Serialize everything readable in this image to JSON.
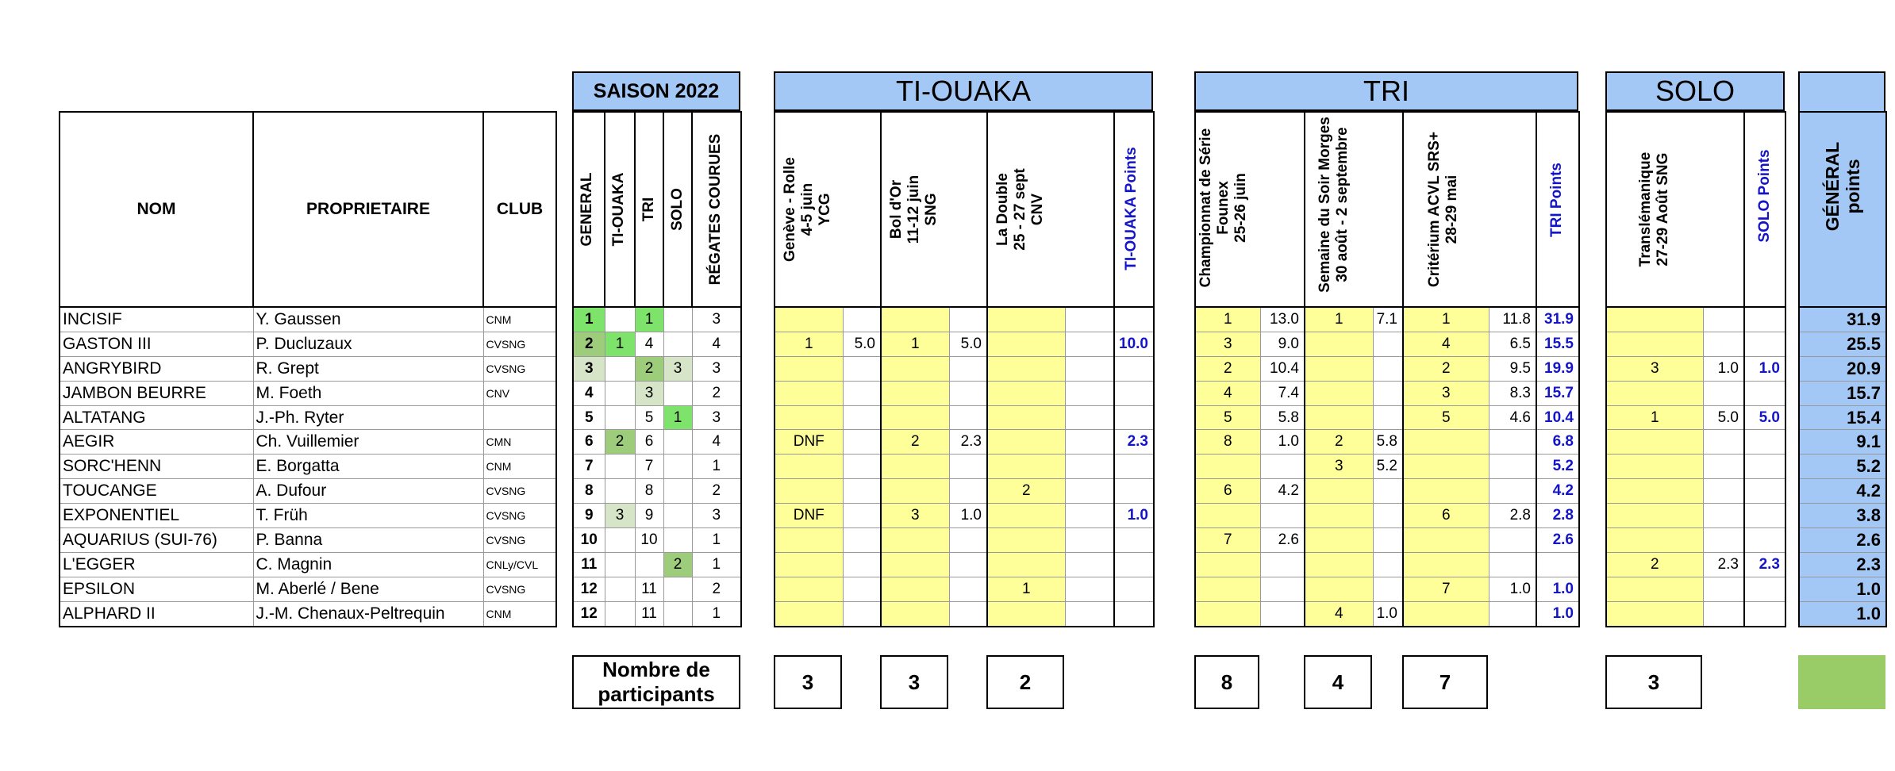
{
  "headers": {
    "nom": "NOM",
    "proprietaire": "PROPRIETAIRE",
    "club": "CLUB",
    "saison": "SAISON 2022",
    "tiouaka": "TI-OUAKA",
    "tri": "TRI",
    "solo": "SOLO",
    "season_cols": [
      "GENERAL",
      "TI-OUAKA",
      "TRI",
      "SOLO",
      "RÉGATES COURUES"
    ],
    "tiouaka_events": [
      [
        "Genève - Rolle",
        "4-5 juin",
        "YCG"
      ],
      [
        "Bol d'Or",
        "11-12 juin",
        "SNG"
      ],
      [
        "La Double",
        "25 - 27 sept",
        "CNV"
      ]
    ],
    "tiouaka_points": "TI-OUAKA Points",
    "tri_events": [
      [
        "Championnat de Série",
        "Founex",
        "25-26 juin"
      ],
      [
        "Semaine du Soir Morges",
        "30 août - 2 septembre"
      ],
      [
        "Critérium ACVL SRS+",
        "28-29 mai"
      ]
    ],
    "tri_points": "TRI Points",
    "solo_events": [
      [
        "Translémanique",
        "27-29 Août SNG"
      ]
    ],
    "solo_points": "SOLO Points",
    "general_points": [
      "GÉNÉRAL",
      "points"
    ]
  },
  "rows": [
    {
      "nom": "INCISIF",
      "prop": "Y. Gaussen",
      "club": "CNM",
      "gen": "1",
      "ti": "",
      "tri": "1",
      "solo": "",
      "reg": "3",
      "e1": "",
      "p1": "",
      "e2": "",
      "p2": "",
      "e3": "",
      "tip": "",
      "t1": "1",
      "q1": "13.0",
      "t2": "1",
      "q2": "7.1",
      "t3": "1",
      "q3": "11.8",
      "trip": "31.9",
      "s1": "",
      "sp": "",
      "ss": "",
      "gp": "31.9"
    },
    {
      "nom": "GASTON III",
      "prop": "P. Ducluzaux",
      "club": "CVSNG",
      "gen": "2",
      "ti": "1",
      "tri": "4",
      "solo": "",
      "reg": "4",
      "e1": "1",
      "p1": "5.0",
      "e2": "1",
      "p2": "5.0",
      "e3": "",
      "tip": "10.0",
      "t1": "3",
      "q1": "9.0",
      "t2": "",
      "q2": "",
      "t3": "4",
      "q3": "6.5",
      "trip": "15.5",
      "s1": "",
      "sp": "",
      "ss": "",
      "gp": "25.5"
    },
    {
      "nom": "ANGRYBIRD",
      "prop": "R. Grept",
      "club": "CVSNG",
      "gen": "3",
      "ti": "",
      "tri": "2",
      "solo": "3",
      "reg": "3",
      "e1": "",
      "p1": "",
      "e2": "",
      "p2": "",
      "e3": "",
      "tip": "",
      "t1": "2",
      "q1": "10.4",
      "t2": "",
      "q2": "",
      "t3": "2",
      "q3": "9.5",
      "trip": "19.9",
      "s1": "3",
      "sp": "1.0",
      "ss": "1.0",
      "gp": "20.9"
    },
    {
      "nom": "JAMBON BEURRE",
      "prop": "M. Foeth",
      "club": "CNV",
      "gen": "4",
      "ti": "",
      "tri": "3",
      "solo": "",
      "reg": "2",
      "e1": "",
      "p1": "",
      "e2": "",
      "p2": "",
      "e3": "",
      "tip": "",
      "t1": "4",
      "q1": "7.4",
      "t2": "",
      "q2": "",
      "t3": "3",
      "q3": "8.3",
      "trip": "15.7",
      "s1": "",
      "sp": "",
      "ss": "",
      "gp": "15.7"
    },
    {
      "nom": "ALTATANG",
      "prop": "J.-Ph. Ryter",
      "club": "",
      "gen": "5",
      "ti": "",
      "tri": "5",
      "solo": "1",
      "reg": "3",
      "e1": "",
      "p1": "",
      "e2": "",
      "p2": "",
      "e3": "",
      "tip": "",
      "t1": "5",
      "q1": "5.8",
      "t2": "",
      "q2": "",
      "t3": "5",
      "q3": "4.6",
      "trip": "10.4",
      "s1": "1",
      "sp": "5.0",
      "ss": "5.0",
      "gp": "15.4"
    },
    {
      "nom": "AEGIR",
      "prop": "Ch. Vuillemier",
      "club": "CMN",
      "gen": "6",
      "ti": "2",
      "tri": "6",
      "solo": "",
      "reg": "4",
      "e1": "DNF",
      "p1": "",
      "e2": "2",
      "p2": "2.3",
      "e3": "",
      "tip": "2.3",
      "t1": "8",
      "q1": "1.0",
      "t2": "2",
      "q2": "5.8",
      "t3": "",
      "q3": "",
      "trip": "6.8",
      "s1": "",
      "sp": "",
      "ss": "",
      "gp": "9.1"
    },
    {
      "nom": "SORC'HENN",
      "prop": "E. Borgatta",
      "club": "CNM",
      "gen": "7",
      "ti": "",
      "tri": "7",
      "solo": "",
      "reg": "1",
      "e1": "",
      "p1": "",
      "e2": "",
      "p2": "",
      "e3": "",
      "tip": "",
      "t1": "",
      "q1": "",
      "t2": "3",
      "q2": "5.2",
      "t3": "",
      "q3": "",
      "trip": "5.2",
      "s1": "",
      "sp": "",
      "ss": "",
      "gp": "5.2"
    },
    {
      "nom": "TOUCANGE",
      "prop": "A. Dufour",
      "club": "CVSNG",
      "gen": "8",
      "ti": "",
      "tri": "8",
      "solo": "",
      "reg": "2",
      "e1": "",
      "p1": "",
      "e2": "",
      "p2": "",
      "e3": "2",
      "tip": "",
      "t1": "6",
      "q1": "4.2",
      "t2": "",
      "q2": "",
      "t3": "",
      "q3": "",
      "trip": "4.2",
      "s1": "",
      "sp": "",
      "ss": "",
      "gp": "4.2"
    },
    {
      "nom": "EXPONENTIEL",
      "prop": "T. Früh",
      "club": "CVSNG",
      "gen": "9",
      "ti": "3",
      "tri": "9",
      "solo": "",
      "reg": "3",
      "e1": "DNF",
      "p1": "",
      "e2": "3",
      "p2": "1.0",
      "e3": "",
      "tip": "1.0",
      "t1": "",
      "q1": "",
      "t2": "",
      "q2": "",
      "t3": "6",
      "q3": "2.8",
      "trip": "2.8",
      "s1": "",
      "sp": "",
      "ss": "",
      "gp": "3.8"
    },
    {
      "nom": "AQUARIUS (SUI-76)",
      "prop": "P. Banna",
      "club": "CVSNG",
      "gen": "10",
      "ti": "",
      "tri": "10",
      "solo": "",
      "reg": "1",
      "e1": "",
      "p1": "",
      "e2": "",
      "p2": "",
      "e3": "",
      "tip": "",
      "t1": "7",
      "q1": "2.6",
      "t2": "",
      "q2": "",
      "t3": "",
      "q3": "",
      "trip": "2.6",
      "s1": "",
      "sp": "",
      "ss": "",
      "gp": "2.6"
    },
    {
      "nom": "L'EGGER",
      "prop": "C. Magnin",
      "club": "CNLy/CVL",
      "gen": "11",
      "ti": "",
      "tri": "",
      "solo": "2",
      "reg": "1",
      "e1": "",
      "p1": "",
      "e2": "",
      "p2": "",
      "e3": "",
      "tip": "",
      "t1": "",
      "q1": "",
      "t2": "",
      "q2": "",
      "t3": "",
      "q3": "",
      "trip": "",
      "s1": "2",
      "sp": "2.3",
      "ss": "2.3",
      "gp": "2.3"
    },
    {
      "nom": "EPSILON",
      "prop": "M. Aberlé / Bene",
      "club": "CVSNG",
      "gen": "12",
      "ti": "",
      "tri": "11",
      "solo": "",
      "reg": "2",
      "e1": "",
      "p1": "",
      "e2": "",
      "p2": "",
      "e3": "1",
      "tip": "",
      "t1": "",
      "q1": "",
      "t2": "",
      "q2": "",
      "t3": "7",
      "q3": "1.0",
      "trip": "1.0",
      "s1": "",
      "sp": "",
      "ss": "",
      "gp": "1.0"
    },
    {
      "nom": "ALPHARD II",
      "prop": "J.-M. Chenaux-Peltrequin",
      "club": "CNM",
      "gen": "12",
      "ti": "",
      "tri": "11",
      "solo": "",
      "reg": "1",
      "e1": "",
      "p1": "",
      "e2": "",
      "p2": "",
      "e3": "",
      "tip": "",
      "t1": "",
      "q1": "",
      "t2": "4",
      "q2": "1.0",
      "t3": "",
      "q3": "",
      "trip": "1.0",
      "s1": "",
      "sp": "",
      "ss": "",
      "gp": "1.0"
    }
  ],
  "footer": {
    "label_line1": "Nombre de",
    "label_line2": "participants",
    "counts": [
      "3",
      "3",
      "2",
      "8",
      "4",
      "7",
      "3"
    ]
  },
  "colors": {
    "header_blue": "#a4c8f5",
    "event_yellow": "#ffff99",
    "points_blue": "#1515c8",
    "rank_green_1": "#7ee36b",
    "rank_green_2": "#9dcc7a",
    "rank_green_3": "#d6e4c7",
    "footer_green": "#99cc66"
  }
}
